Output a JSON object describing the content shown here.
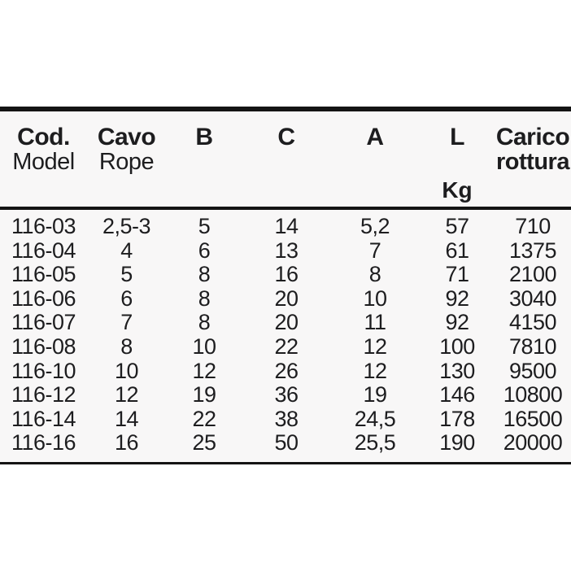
{
  "chart_data": {
    "type": "table",
    "title": "",
    "columns": [
      {
        "title": "Cod.",
        "subtitle": "Model",
        "unit": ""
      },
      {
        "title": "Cavo",
        "subtitle": "Rope",
        "unit": ""
      },
      {
        "title": "B",
        "subtitle": "",
        "unit": ""
      },
      {
        "title": "C",
        "subtitle": "",
        "unit": ""
      },
      {
        "title": "A",
        "subtitle": "",
        "unit": ""
      },
      {
        "title": "L",
        "subtitle": "",
        "unit": "Kg"
      },
      {
        "title": "Carico",
        "subtitle": "rottura",
        "unit": ""
      }
    ],
    "rows": [
      [
        "116-03",
        "2,5-3",
        "5",
        "14",
        "5,2",
        "57",
        "710"
      ],
      [
        "116-04",
        "4",
        "6",
        "13",
        "7",
        "61",
        "1375"
      ],
      [
        "116-05",
        "5",
        "8",
        "16",
        "8",
        "71",
        "2100"
      ],
      [
        "116-06",
        "6",
        "8",
        "20",
        "10",
        "92",
        "3040"
      ],
      [
        "116-07",
        "7",
        "8",
        "20",
        "11",
        "92",
        "4150"
      ],
      [
        "116-08",
        "8",
        "10",
        "22",
        "12",
        "100",
        "7810"
      ],
      [
        "116-10",
        "10",
        "12",
        "26",
        "12",
        "130",
        "9500"
      ],
      [
        "116-12",
        "12",
        "19",
        "36",
        "19",
        "146",
        "10800"
      ],
      [
        "116-14",
        "14",
        "22",
        "38",
        "24,5",
        "178",
        "16500"
      ],
      [
        "116-16",
        "16",
        "25",
        "50",
        "25,5",
        "190",
        "20000"
      ]
    ],
    "layout": {
      "grid": false,
      "row_count": 10,
      "column_count": 7
    }
  },
  "colors": {
    "text": "#1d1d1f",
    "rule": "#141414",
    "band_background": "#f8f7f7",
    "page_background": "#ffffff"
  }
}
